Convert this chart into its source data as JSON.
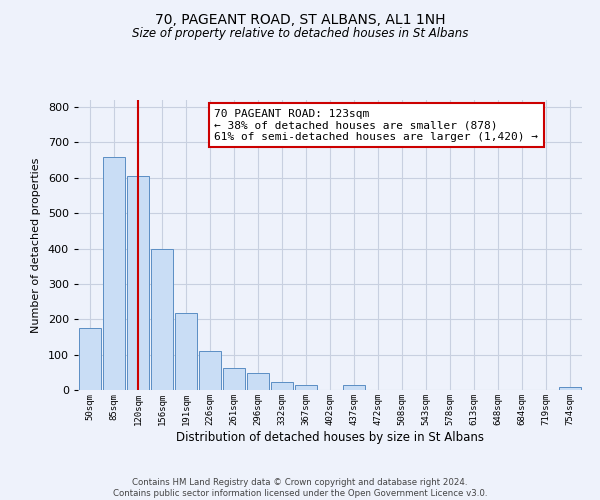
{
  "title": "70, PAGEANT ROAD, ST ALBANS, AL1 1NH",
  "subtitle": "Size of property relative to detached houses in St Albans",
  "bar_labels": [
    "50sqm",
    "85sqm",
    "120sqm",
    "156sqm",
    "191sqm",
    "226sqm",
    "261sqm",
    "296sqm",
    "332sqm",
    "367sqm",
    "402sqm",
    "437sqm",
    "472sqm",
    "508sqm",
    "543sqm",
    "578sqm",
    "613sqm",
    "648sqm",
    "684sqm",
    "719sqm",
    "754sqm"
  ],
  "bar_values": [
    175,
    660,
    605,
    400,
    218,
    110,
    63,
    47,
    22,
    14,
    0,
    14,
    0,
    0,
    0,
    0,
    0,
    0,
    0,
    0,
    8
  ],
  "bar_color": "#c9ddf5",
  "bar_edge_color": "#5b8ec4",
  "vline_x": 2,
  "vline_color": "#cc0000",
  "ylabel": "Number of detached properties",
  "xlabel": "Distribution of detached houses by size in St Albans",
  "ylim": [
    0,
    820
  ],
  "yticks": [
    0,
    100,
    200,
    300,
    400,
    500,
    600,
    700,
    800
  ],
  "annotation_title": "70 PAGEANT ROAD: 123sqm",
  "annotation_line1": "← 38% of detached houses are smaller (878)",
  "annotation_line2": "61% of semi-detached houses are larger (1,420) →",
  "annotation_box_color": "#cc0000",
  "footer_line1": "Contains HM Land Registry data © Crown copyright and database right 2024.",
  "footer_line2": "Contains public sector information licensed under the Open Government Licence v3.0.",
  "bg_color": "#eef2fb",
  "grid_color": "#c8d0e0"
}
